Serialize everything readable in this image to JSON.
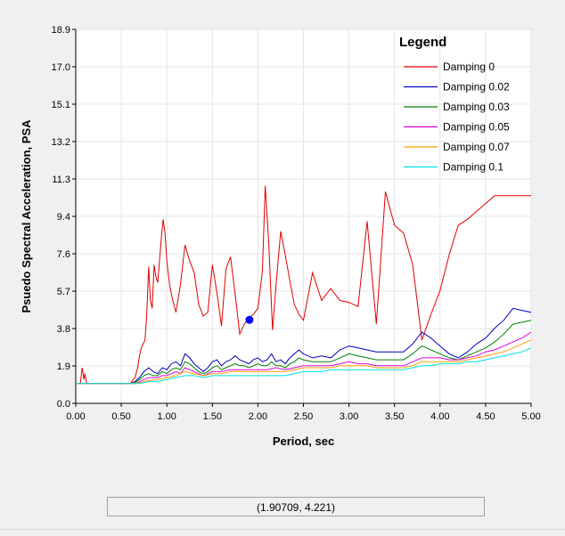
{
  "chart_data": {
    "type": "line",
    "title": "",
    "xlabel": "Period, sec",
    "ylabel": "Psuedo Spectral Acceleration, PSA",
    "xlim": [
      0,
      5
    ],
    "ylim": [
      0,
      18.9
    ],
    "x_ticks": [
      "0.00",
      "0.50",
      "1.00",
      "1.50",
      "2.00",
      "2.50",
      "3.00",
      "3.50",
      "4.00",
      "4.50",
      "5.00"
    ],
    "y_ticks": [
      "0.0",
      "1.9",
      "3.8",
      "5.7",
      "7.6",
      "9.4",
      "11.3",
      "13.2",
      "15.1",
      "17.0",
      "18.9"
    ],
    "grid": true,
    "legend": {
      "title": "Legend",
      "placement": "top-right"
    },
    "series": [
      {
        "name": "Damping 0",
        "color": "#e00000",
        "x": [
          0.0,
          0.05,
          0.07,
          0.09,
          0.1,
          0.12,
          0.15,
          0.2,
          0.3,
          0.4,
          0.5,
          0.6,
          0.65,
          0.68,
          0.7,
          0.72,
          0.74,
          0.76,
          0.78,
          0.8,
          0.82,
          0.84,
          0.86,
          0.88,
          0.9,
          0.92,
          0.94,
          0.96,
          0.98,
          1.0,
          1.03,
          1.06,
          1.1,
          1.15,
          1.2,
          1.25,
          1.3,
          1.35,
          1.4,
          1.45,
          1.5,
          1.55,
          1.6,
          1.65,
          1.7,
          1.75,
          1.8,
          1.85,
          1.9,
          1.95,
          2.0,
          2.05,
          2.08,
          2.12,
          2.16,
          2.2,
          2.25,
          2.3,
          2.35,
          2.4,
          2.45,
          2.5,
          2.6,
          2.7,
          2.8,
          2.9,
          3.0,
          3.1,
          3.2,
          3.3,
          3.4,
          3.5,
          3.6,
          3.7,
          3.8,
          3.9,
          4.0,
          4.1,
          4.2,
          4.3,
          4.4,
          4.5,
          4.6,
          4.7,
          4.8,
          4.9,
          5.0
        ],
        "y": [
          1.0,
          1.0,
          1.8,
          1.2,
          1.5,
          1.0,
          1.0,
          1.0,
          1.0,
          1.0,
          1.0,
          1.0,
          1.3,
          1.8,
          2.4,
          2.8,
          3.0,
          3.2,
          4.5,
          6.9,
          5.2,
          4.8,
          7.0,
          6.4,
          6.1,
          7.2,
          8.4,
          9.3,
          8.6,
          7.2,
          6.0,
          5.3,
          4.6,
          6.0,
          8.0,
          7.2,
          6.6,
          5.0,
          4.4,
          4.6,
          7.0,
          5.6,
          3.9,
          6.8,
          7.4,
          5.5,
          3.5,
          4.0,
          4.3,
          4.5,
          4.8,
          6.7,
          11.0,
          8.0,
          3.7,
          6.0,
          8.7,
          7.5,
          6.2,
          5.0,
          4.5,
          4.2,
          6.6,
          5.2,
          5.8,
          5.2,
          5.1,
          4.9,
          9.2,
          4.0,
          10.7,
          9.0,
          8.6,
          7.0,
          3.2,
          4.5,
          5.7,
          7.5,
          9.0,
          9.3,
          9.7,
          10.1,
          10.5,
          10.5,
          10.5,
          10.5,
          10.5
        ]
      },
      {
        "name": "Damping 0.02",
        "color": "#0000c0",
        "x": [
          0.0,
          0.1,
          0.2,
          0.3,
          0.4,
          0.5,
          0.6,
          0.65,
          0.7,
          0.75,
          0.8,
          0.85,
          0.9,
          0.95,
          1.0,
          1.05,
          1.1,
          1.15,
          1.2,
          1.25,
          1.3,
          1.35,
          1.4,
          1.45,
          1.5,
          1.55,
          1.6,
          1.65,
          1.7,
          1.75,
          1.8,
          1.85,
          1.9,
          1.95,
          2.0,
          2.05,
          2.1,
          2.15,
          2.2,
          2.25,
          2.3,
          2.35,
          2.4,
          2.45,
          2.5,
          2.6,
          2.7,
          2.8,
          2.9,
          3.0,
          3.1,
          3.2,
          3.3,
          3.4,
          3.5,
          3.6,
          3.7,
          3.8,
          3.9,
          4.0,
          4.1,
          4.2,
          4.3,
          4.4,
          4.5,
          4.6,
          4.7,
          4.8,
          4.9,
          5.0
        ],
        "y": [
          1.0,
          1.0,
          1.0,
          1.0,
          1.0,
          1.0,
          1.0,
          1.1,
          1.3,
          1.6,
          1.8,
          1.6,
          1.5,
          1.8,
          1.7,
          2.0,
          2.1,
          1.9,
          2.5,
          2.3,
          2.0,
          1.8,
          1.6,
          1.8,
          2.1,
          2.2,
          1.9,
          2.1,
          2.2,
          2.4,
          2.2,
          2.1,
          2.0,
          2.2,
          2.3,
          2.1,
          2.2,
          2.5,
          2.1,
          2.2,
          2.0,
          2.3,
          2.5,
          2.7,
          2.5,
          2.3,
          2.4,
          2.3,
          2.7,
          2.9,
          2.8,
          2.7,
          2.6,
          2.6,
          2.6,
          2.6,
          3.0,
          3.6,
          3.3,
          2.9,
          2.5,
          2.3,
          2.6,
          3.0,
          3.3,
          3.8,
          4.2,
          4.8,
          4.7,
          4.6
        ]
      },
      {
        "name": "Damping 0.03",
        "color": "#008000",
        "x": [
          0.0,
          0.1,
          0.2,
          0.3,
          0.4,
          0.5,
          0.6,
          0.65,
          0.7,
          0.75,
          0.8,
          0.85,
          0.9,
          0.95,
          1.0,
          1.05,
          1.1,
          1.15,
          1.2,
          1.25,
          1.3,
          1.35,
          1.4,
          1.45,
          1.5,
          1.55,
          1.6,
          1.65,
          1.7,
          1.75,
          1.8,
          1.85,
          1.9,
          1.95,
          2.0,
          2.05,
          2.1,
          2.15,
          2.2,
          2.25,
          2.3,
          2.35,
          2.4,
          2.45,
          2.5,
          2.6,
          2.7,
          2.8,
          2.9,
          3.0,
          3.1,
          3.2,
          3.3,
          3.4,
          3.5,
          3.6,
          3.7,
          3.8,
          3.9,
          4.0,
          4.1,
          4.2,
          4.3,
          4.4,
          4.5,
          4.6,
          4.7,
          4.8,
          4.9,
          5.0
        ],
        "y": [
          1.0,
          1.0,
          1.0,
          1.0,
          1.0,
          1.0,
          1.0,
          1.05,
          1.2,
          1.4,
          1.5,
          1.4,
          1.4,
          1.6,
          1.5,
          1.7,
          1.8,
          1.7,
          2.1,
          2.0,
          1.8,
          1.6,
          1.5,
          1.6,
          1.8,
          1.9,
          1.7,
          1.8,
          1.9,
          2.0,
          1.9,
          1.9,
          1.8,
          1.9,
          2.0,
          1.9,
          1.9,
          2.1,
          1.9,
          1.9,
          1.8,
          2.0,
          2.1,
          2.3,
          2.2,
          2.1,
          2.1,
          2.1,
          2.3,
          2.5,
          2.4,
          2.3,
          2.2,
          2.2,
          2.2,
          2.2,
          2.5,
          2.9,
          2.7,
          2.5,
          2.3,
          2.2,
          2.4,
          2.6,
          2.8,
          3.1,
          3.5,
          4.0,
          4.1,
          4.2
        ]
      },
      {
        "name": "Damping 0.05",
        "color": "#e000e0",
        "x": [
          0.0,
          0.1,
          0.2,
          0.3,
          0.4,
          0.5,
          0.6,
          0.65,
          0.7,
          0.75,
          0.8,
          0.85,
          0.9,
          0.95,
          1.0,
          1.05,
          1.1,
          1.15,
          1.2,
          1.25,
          1.3,
          1.35,
          1.4,
          1.45,
          1.5,
          1.6,
          1.7,
          1.8,
          1.9,
          2.0,
          2.1,
          2.2,
          2.3,
          2.4,
          2.5,
          2.6,
          2.7,
          2.8,
          2.9,
          3.0,
          3.1,
          3.2,
          3.3,
          3.4,
          3.5,
          3.6,
          3.7,
          3.8,
          3.9,
          4.0,
          4.1,
          4.2,
          4.3,
          4.4,
          4.5,
          4.6,
          4.7,
          4.8,
          4.9,
          5.0
        ],
        "y": [
          1.0,
          1.0,
          1.0,
          1.0,
          1.0,
          1.0,
          1.0,
          1.0,
          1.1,
          1.2,
          1.3,
          1.3,
          1.3,
          1.4,
          1.4,
          1.5,
          1.6,
          1.5,
          1.8,
          1.7,
          1.6,
          1.5,
          1.4,
          1.5,
          1.6,
          1.6,
          1.7,
          1.7,
          1.7,
          1.7,
          1.7,
          1.8,
          1.7,
          1.8,
          1.9,
          1.9,
          1.9,
          1.9,
          2.0,
          2.1,
          2.0,
          2.0,
          1.9,
          1.9,
          1.9,
          1.9,
          2.1,
          2.3,
          2.3,
          2.3,
          2.2,
          2.2,
          2.3,
          2.4,
          2.6,
          2.7,
          2.9,
          3.1,
          3.3,
          3.6
        ]
      },
      {
        "name": "Damping 0.07",
        "color": "#ffa000",
        "x": [
          0.0,
          0.1,
          0.2,
          0.3,
          0.4,
          0.5,
          0.6,
          0.7,
          0.8,
          0.9,
          1.0,
          1.1,
          1.2,
          1.3,
          1.4,
          1.5,
          1.6,
          1.7,
          1.8,
          1.9,
          2.0,
          2.1,
          2.2,
          2.3,
          2.4,
          2.5,
          2.6,
          2.7,
          2.8,
          2.9,
          3.0,
          3.1,
          3.2,
          3.3,
          3.4,
          3.5,
          3.6,
          3.7,
          3.8,
          3.9,
          4.0,
          4.1,
          4.2,
          4.3,
          4.4,
          4.5,
          4.6,
          4.7,
          4.8,
          4.9,
          5.0
        ],
        "y": [
          1.0,
          1.0,
          1.0,
          1.0,
          1.0,
          1.0,
          1.0,
          1.05,
          1.15,
          1.2,
          1.3,
          1.4,
          1.6,
          1.5,
          1.4,
          1.5,
          1.5,
          1.6,
          1.6,
          1.6,
          1.6,
          1.6,
          1.6,
          1.6,
          1.7,
          1.8,
          1.8,
          1.8,
          1.8,
          1.9,
          1.9,
          1.9,
          1.9,
          1.8,
          1.8,
          1.8,
          1.8,
          1.9,
          2.1,
          2.1,
          2.1,
          2.1,
          2.1,
          2.2,
          2.3,
          2.4,
          2.5,
          2.6,
          2.8,
          3.0,
          3.2
        ]
      },
      {
        "name": "Damping 0.1",
        "color": "#00e0e0",
        "x": [
          0.0,
          0.1,
          0.2,
          0.3,
          0.4,
          0.5,
          0.6,
          0.7,
          0.8,
          0.9,
          1.0,
          1.1,
          1.2,
          1.3,
          1.4,
          1.5,
          1.6,
          1.7,
          1.8,
          1.9,
          2.0,
          2.1,
          2.2,
          2.3,
          2.4,
          2.5,
          2.6,
          2.7,
          2.8,
          2.9,
          3.0,
          3.1,
          3.2,
          3.3,
          3.4,
          3.5,
          3.6,
          3.7,
          3.8,
          3.9,
          4.0,
          4.1,
          4.2,
          4.3,
          4.4,
          4.5,
          4.6,
          4.7,
          4.8,
          4.9,
          5.0
        ],
        "y": [
          1.0,
          1.0,
          1.0,
          1.0,
          1.0,
          1.0,
          1.0,
          1.0,
          1.1,
          1.1,
          1.2,
          1.3,
          1.4,
          1.4,
          1.3,
          1.4,
          1.4,
          1.4,
          1.4,
          1.4,
          1.4,
          1.4,
          1.4,
          1.4,
          1.5,
          1.6,
          1.6,
          1.6,
          1.7,
          1.7,
          1.7,
          1.7,
          1.7,
          1.7,
          1.7,
          1.7,
          1.7,
          1.8,
          1.9,
          1.9,
          2.0,
          2.0,
          2.0,
          2.1,
          2.1,
          2.2,
          2.3,
          2.4,
          2.5,
          2.6,
          2.8
        ]
      }
    ],
    "marker": {
      "x": 1.90709,
      "y": 4.221,
      "color": "#0000ff"
    }
  },
  "coord_readout": "(1.90709, 4.221)"
}
